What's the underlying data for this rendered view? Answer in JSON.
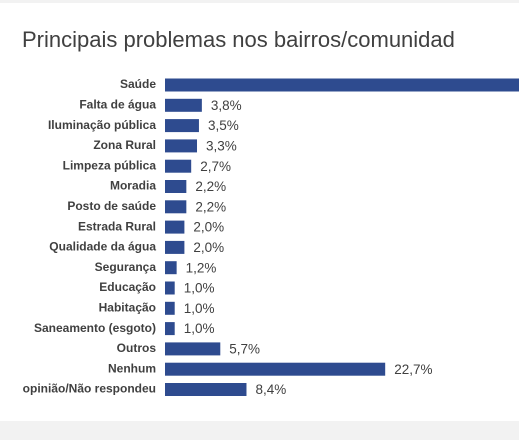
{
  "chart_data": {
    "type": "bar",
    "orientation": "horizontal",
    "title": "Principais problemas nos bairros/comunidad",
    "categories": [
      "Saúde",
      "Falta de água",
      "Iluminação pública",
      "Zona Rural",
      "Limpeza pública",
      "Moradia",
      "Posto de saúde",
      "Estrada Rural",
      "Qualidade da água",
      "Segurança",
      "Educação",
      "Habitação",
      "Saneamento (esgoto)",
      "Outros",
      "Nenhum",
      "opinião/Não respondeu"
    ],
    "values": [
      37.3,
      3.8,
      3.5,
      3.3,
      2.7,
      2.2,
      2.2,
      2.0,
      2.0,
      1.2,
      1.0,
      1.0,
      1.0,
      5.7,
      22.7,
      8.4
    ],
    "value_labels": [
      null,
      "3,8%",
      "3,5%",
      "3,3%",
      "2,7%",
      "2,2%",
      "2,2%",
      "2,0%",
      "2,0%",
      "1,2%",
      "1,0%",
      "1,0%",
      "1,0%",
      "5,7%",
      "22,7%",
      "8,4%"
    ],
    "color": "#2e4b8f"
  }
}
